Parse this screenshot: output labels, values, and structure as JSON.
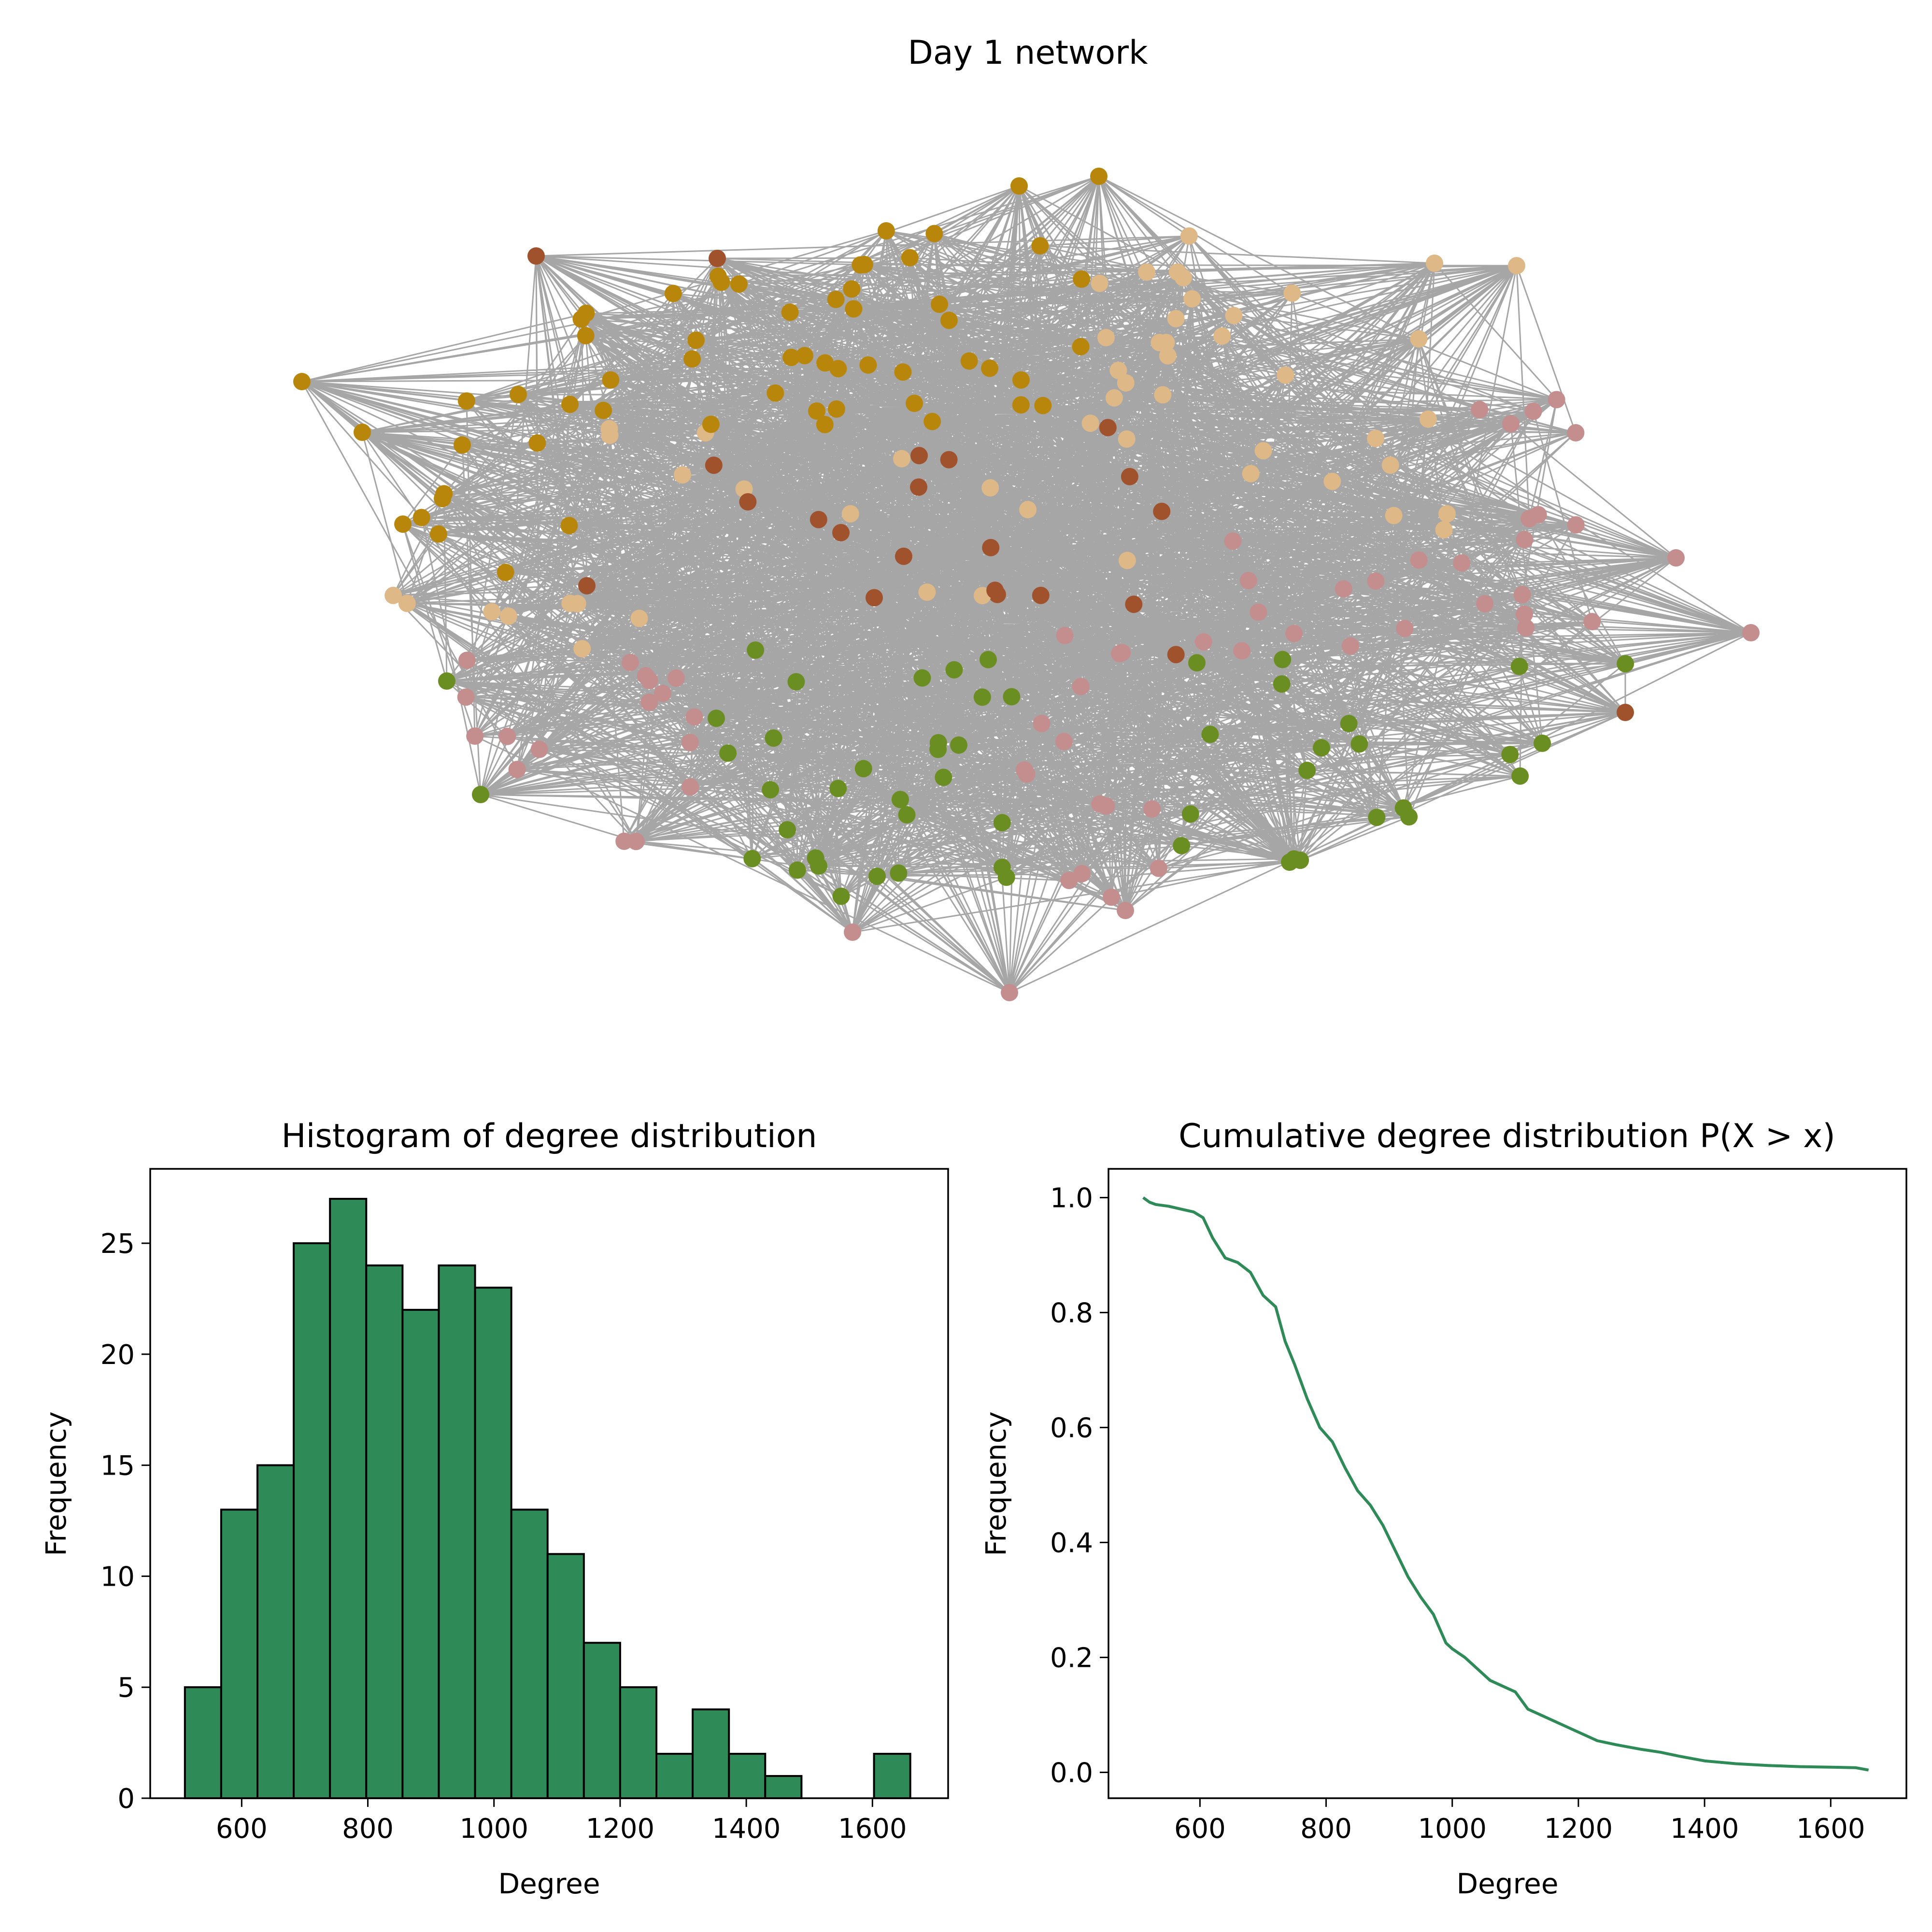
{
  "network": {
    "title": "Day 1 network",
    "group_colors": [
      "#b8860b",
      "#a0522d",
      "#deb887",
      "#6b8e23",
      "#c48e8e"
    ]
  },
  "chart_data": [
    {
      "type": "bar",
      "title": "Histogram of degree distribution",
      "xlabel": "Degree",
      "ylabel": "Frequency",
      "bin_edges": [
        510,
        567.5,
        625,
        682.5,
        740,
        797.5,
        855,
        912.5,
        970,
        1027.5,
        1085,
        1142.5,
        1200,
        1257.5,
        1315,
        1372.5,
        1430,
        1487.5,
        1545,
        1602.5,
        1660
      ],
      "values": [
        5,
        13,
        15,
        25,
        27,
        24,
        22,
        24,
        23,
        13,
        11,
        7,
        5,
        2,
        4,
        2,
        1,
        0,
        0,
        2
      ],
      "xlim": [
        455,
        1720
      ],
      "ylim": [
        0,
        28.35
      ],
      "xticks": [
        600,
        800,
        1000,
        1200,
        1400,
        1600
      ],
      "xtick_labels": [
        "600",
        "800",
        "1000",
        "1200",
        "1400",
        "1600"
      ],
      "yticks": [
        0,
        5,
        10,
        15,
        20,
        25
      ],
      "ytick_labels": [
        "0",
        "5",
        "10",
        "15",
        "20",
        "25"
      ],
      "bar_color": "#2e8b57",
      "edge_color": "#000000"
    },
    {
      "type": "line",
      "title": "Cumulative degree distribution P(X > x)",
      "xlabel": "Degree",
      "ylabel": "Frequency",
      "x": [
        510,
        520,
        530,
        550,
        570,
        590,
        605,
        620,
        640,
        660,
        680,
        700,
        720,
        735,
        750,
        770,
        790,
        810,
        830,
        850,
        870,
        890,
        910,
        930,
        950,
        970,
        990,
        1000,
        1020,
        1040,
        1060,
        1080,
        1100,
        1120,
        1140,
        1160,
        1180,
        1200,
        1230,
        1260,
        1300,
        1330,
        1360,
        1400,
        1450,
        1500,
        1550,
        1600,
        1640,
        1660
      ],
      "y": [
        1.0,
        0.992,
        0.988,
        0.985,
        0.98,
        0.975,
        0.965,
        0.93,
        0.895,
        0.887,
        0.87,
        0.83,
        0.81,
        0.75,
        0.71,
        0.65,
        0.6,
        0.575,
        0.53,
        0.49,
        0.465,
        0.43,
        0.385,
        0.34,
        0.305,
        0.275,
        0.225,
        0.215,
        0.2,
        0.18,
        0.16,
        0.15,
        0.14,
        0.11,
        0.1,
        0.09,
        0.08,
        0.07,
        0.055,
        0.048,
        0.04,
        0.035,
        0.028,
        0.02,
        0.015,
        0.012,
        0.01,
        0.009,
        0.008,
        0.004
      ],
      "xlim": [
        455,
        1720
      ],
      "ylim": [
        -0.045,
        1.05
      ],
      "xticks": [
        600,
        800,
        1000,
        1200,
        1400,
        1600
      ],
      "xtick_labels": [
        "600",
        "800",
        "1000",
        "1200",
        "1400",
        "1600"
      ],
      "yticks": [
        0.0,
        0.2,
        0.4,
        0.6,
        0.8,
        1.0
      ],
      "ytick_labels": [
        "0.0",
        "0.2",
        "0.4",
        "0.6",
        "0.8",
        "1.0"
      ],
      "line_color": "#2e8b57"
    }
  ]
}
